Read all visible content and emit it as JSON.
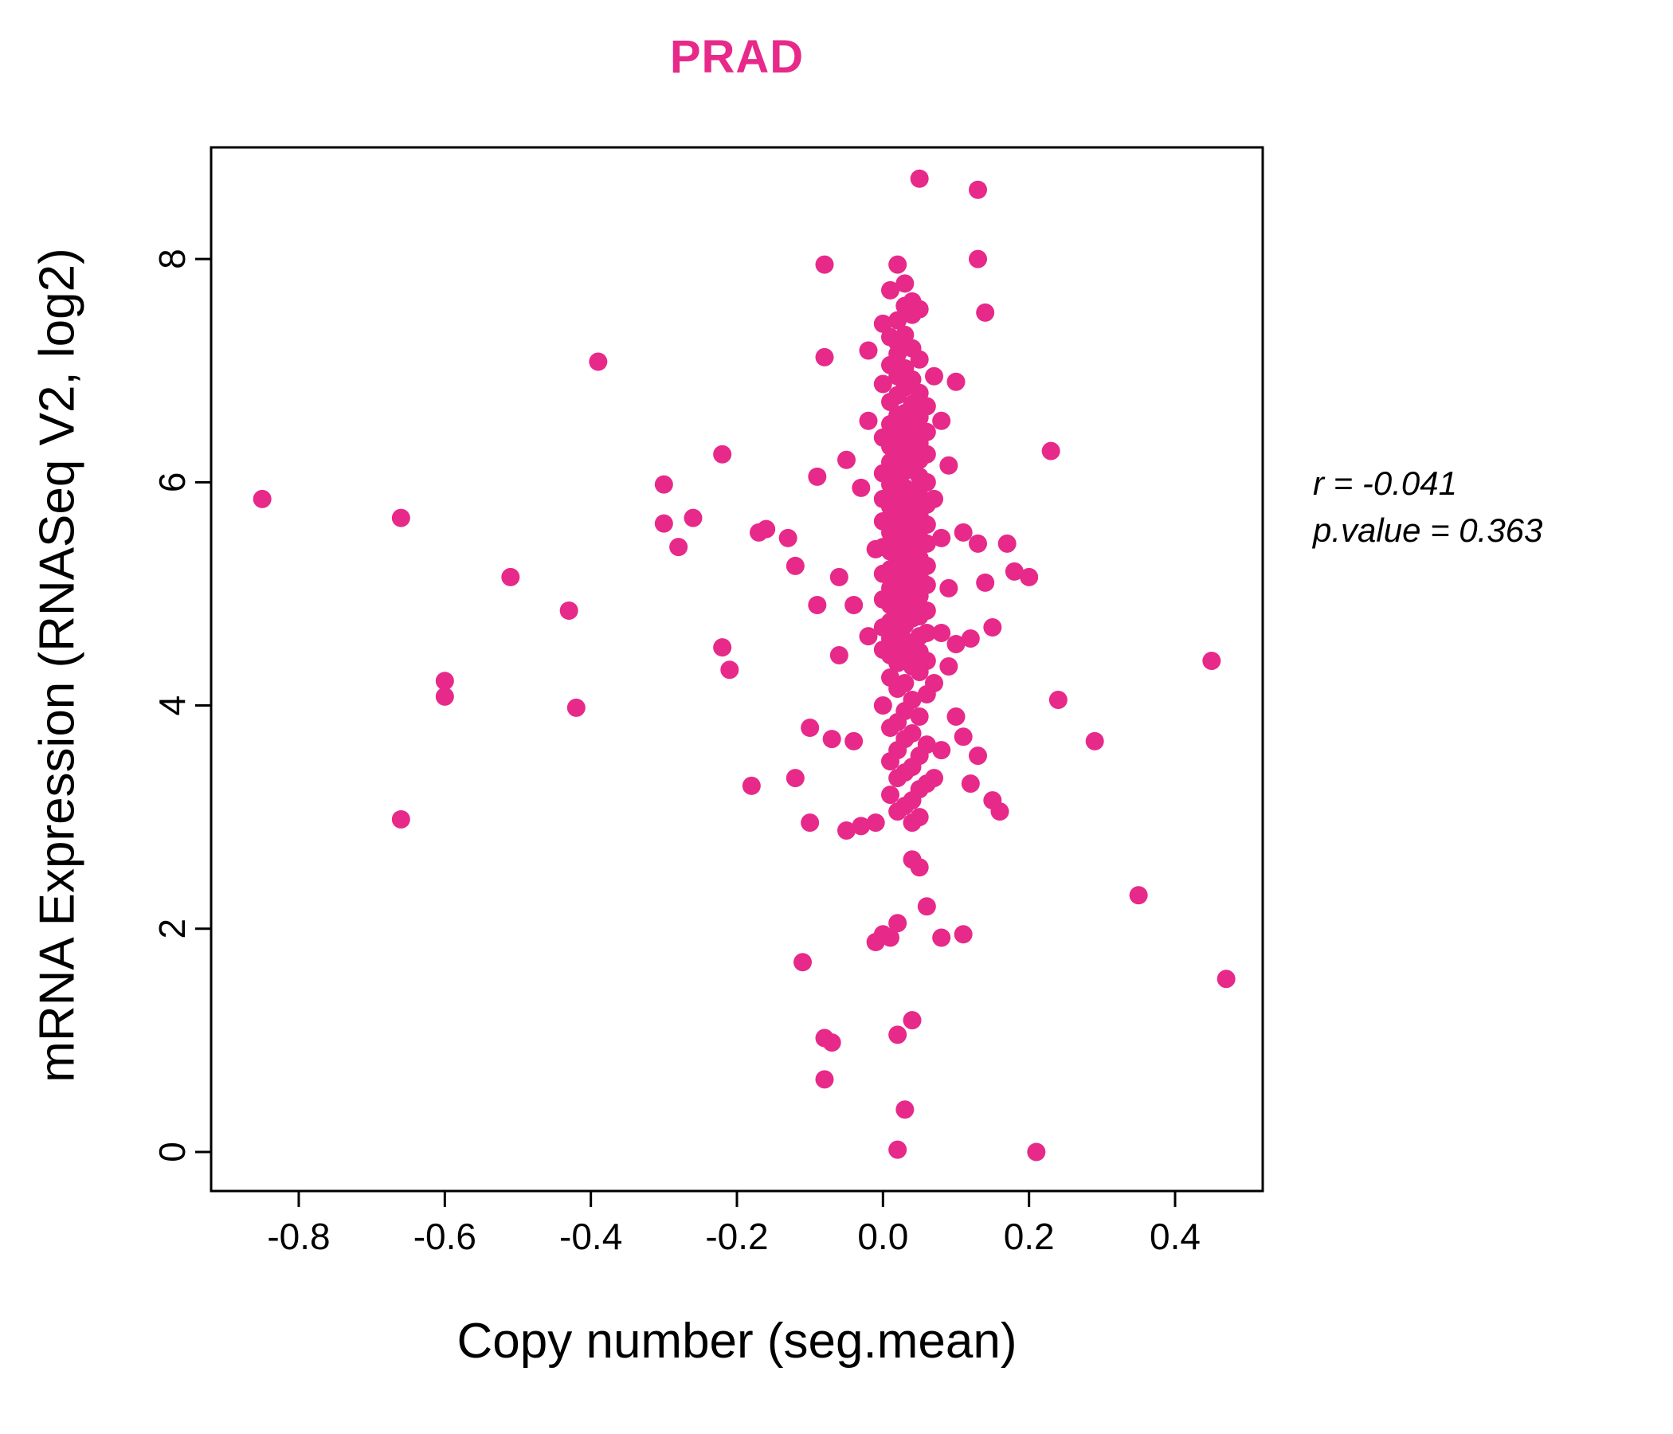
{
  "colors": {
    "accent": "#E7298A"
  },
  "chart_data": {
    "type": "scatter",
    "title": "PRAD",
    "xlabel": "Copy number (seg.mean)",
    "ylabel": "mRNA Expression (RNASeq V2, log2)",
    "xlim": [
      -0.92,
      0.52
    ],
    "ylim": [
      -0.35,
      9.0
    ],
    "x_ticks": [
      -0.8,
      -0.6,
      -0.4,
      -0.2,
      0.0,
      0.2,
      0.4
    ],
    "y_ticks": [
      0,
      2,
      4,
      6,
      8
    ],
    "grid": false,
    "legend": null,
    "point_color": "#E7298A",
    "annotations": [
      "r = -0.041",
      "p.value = 0.363"
    ],
    "points": [
      [
        -0.85,
        5.85
      ],
      [
        -0.66,
        5.68
      ],
      [
        -0.66,
        2.98
      ],
      [
        -0.6,
        4.22
      ],
      [
        -0.6,
        4.08
      ],
      [
        -0.51,
        5.15
      ],
      [
        -0.43,
        4.85
      ],
      [
        -0.42,
        3.98
      ],
      [
        -0.39,
        7.08
      ],
      [
        -0.3,
        5.98
      ],
      [
        -0.3,
        5.63
      ],
      [
        -0.28,
        5.42
      ],
      [
        -0.26,
        5.68
      ],
      [
        -0.22,
        6.25
      ],
      [
        -0.22,
        4.52
      ],
      [
        -0.21,
        4.32
      ],
      [
        -0.18,
        3.28
      ],
      [
        -0.17,
        5.55
      ],
      [
        -0.16,
        5.58
      ],
      [
        -0.13,
        5.5
      ],
      [
        -0.12,
        5.25
      ],
      [
        -0.12,
        3.35
      ],
      [
        -0.11,
        1.7
      ],
      [
        -0.1,
        2.95
      ],
      [
        -0.1,
        3.8
      ],
      [
        -0.09,
        4.9
      ],
      [
        -0.09,
        6.05
      ],
      [
        -0.08,
        7.95
      ],
      [
        -0.08,
        7.12
      ],
      [
        -0.08,
        1.02
      ],
      [
        -0.08,
        0.65
      ],
      [
        -0.07,
        0.98
      ],
      [
        -0.07,
        3.7
      ],
      [
        -0.06,
        4.45
      ],
      [
        -0.06,
        5.15
      ],
      [
        -0.05,
        6.2
      ],
      [
        -0.05,
        2.88
      ],
      [
        -0.04,
        4.9
      ],
      [
        -0.04,
        3.68
      ],
      [
        -0.03,
        5.95
      ],
      [
        -0.03,
        2.92
      ],
      [
        -0.02,
        7.18
      ],
      [
        -0.02,
        6.55
      ],
      [
        -0.02,
        4.62
      ],
      [
        -0.01,
        5.4
      ],
      [
        -0.01,
        2.95
      ],
      [
        -0.01,
        1.88
      ],
      [
        0.02,
        0.02
      ],
      [
        0.21,
        0.0
      ],
      [
        0.03,
        0.38
      ],
      [
        0.04,
        1.18
      ],
      [
        0.02,
        1.05
      ],
      [
        0.0,
        1.95
      ],
      [
        0.01,
        1.92
      ],
      [
        0.02,
        2.05
      ],
      [
        0.05,
        2.55
      ],
      [
        0.06,
        2.2
      ],
      [
        0.08,
        1.92
      ],
      [
        0.11,
        1.95
      ],
      [
        0.04,
        2.62
      ],
      [
        0.05,
        8.72
      ],
      [
        0.13,
        8.62
      ],
      [
        0.13,
        8.0
      ],
      [
        0.02,
        7.95
      ],
      [
        0.14,
        7.52
      ],
      [
        0.03,
        7.78
      ],
      [
        0.01,
        7.72
      ],
      [
        0.04,
        7.62
      ],
      [
        0.0,
        7.42
      ],
      [
        0.02,
        7.45
      ],
      [
        0.04,
        7.5
      ],
      [
        0.03,
        7.58
      ],
      [
        0.05,
        7.55
      ],
      [
        0.1,
        6.9
      ],
      [
        0.11,
        5.55
      ],
      [
        0.12,
        3.3
      ],
      [
        0.13,
        5.45
      ],
      [
        0.14,
        5.1
      ],
      [
        0.15,
        3.15
      ],
      [
        0.15,
        4.7
      ],
      [
        0.16,
        3.05
      ],
      [
        0.17,
        5.45
      ],
      [
        0.18,
        5.2
      ],
      [
        0.2,
        5.15
      ],
      [
        0.23,
        6.28
      ],
      [
        0.24,
        4.05
      ],
      [
        0.29,
        3.68
      ],
      [
        0.35,
        2.3
      ],
      [
        0.45,
        4.4
      ],
      [
        0.47,
        1.55
      ],
      [
        0.12,
        4.6
      ],
      [
        0.13,
        3.55
      ],
      [
        0.11,
        3.72
      ],
      [
        0.01,
        7.3
      ],
      [
        0.02,
        7.25
      ],
      [
        0.03,
        7.32
      ],
      [
        0.02,
        7.15
      ],
      [
        0.04,
        7.2
      ],
      [
        0.01,
        7.05
      ],
      [
        0.03,
        7.02
      ],
      [
        0.05,
        7.1
      ],
      [
        0.02,
        6.95
      ],
      [
        0.04,
        6.92
      ],
      [
        0.0,
        6.88
      ],
      [
        0.03,
        6.85
      ],
      [
        0.05,
        6.8
      ],
      [
        0.02,
        6.78
      ],
      [
        0.01,
        6.72
      ],
      [
        0.04,
        6.7
      ],
      [
        0.06,
        6.68
      ],
      [
        0.03,
        6.62
      ],
      [
        0.02,
        6.6
      ],
      [
        0.05,
        6.58
      ],
      [
        0.01,
        6.52
      ],
      [
        0.03,
        6.5
      ],
      [
        0.04,
        6.48
      ],
      [
        0.06,
        6.45
      ],
      [
        0.02,
        6.42
      ],
      [
        0.0,
        6.4
      ],
      [
        0.03,
        6.38
      ],
      [
        0.05,
        6.35
      ],
      [
        0.01,
        6.32
      ],
      [
        0.04,
        6.3
      ],
      [
        0.02,
        6.28
      ],
      [
        0.06,
        6.25
      ],
      [
        0.03,
        6.22
      ],
      [
        0.05,
        6.2
      ],
      [
        0.01,
        6.18
      ],
      [
        0.02,
        6.15
      ],
      [
        0.04,
        6.12
      ],
      [
        0.03,
        6.1
      ],
      [
        0.0,
        6.08
      ],
      [
        0.05,
        6.05
      ],
      [
        0.02,
        6.02
      ],
      [
        0.06,
        6.0
      ],
      [
        0.01,
        5.98
      ],
      [
        0.03,
        5.95
      ],
      [
        0.04,
        5.92
      ],
      [
        0.02,
        5.9
      ],
      [
        0.05,
        5.88
      ],
      [
        0.0,
        5.85
      ],
      [
        0.03,
        5.82
      ],
      [
        0.06,
        5.8
      ],
      [
        0.01,
        5.78
      ],
      [
        0.04,
        5.75
      ],
      [
        0.02,
        5.72
      ],
      [
        0.05,
        5.7
      ],
      [
        0.03,
        5.68
      ],
      [
        0.0,
        5.65
      ],
      [
        0.06,
        5.62
      ],
      [
        0.02,
        5.6
      ],
      [
        0.04,
        5.58
      ],
      [
        0.01,
        5.55
      ],
      [
        0.03,
        5.52
      ],
      [
        0.05,
        5.5
      ],
      [
        0.02,
        5.48
      ],
      [
        0.06,
        5.45
      ],
      [
        0.0,
        5.42
      ],
      [
        0.04,
        5.4
      ],
      [
        0.01,
        5.38
      ],
      [
        0.03,
        5.35
      ],
      [
        0.05,
        5.32
      ],
      [
        0.02,
        5.3
      ],
      [
        0.04,
        5.28
      ],
      [
        0.06,
        5.25
      ],
      [
        0.01,
        5.22
      ],
      [
        0.03,
        5.2
      ],
      [
        0.0,
        5.18
      ],
      [
        0.05,
        5.15
      ],
      [
        0.02,
        5.12
      ],
      [
        0.04,
        5.1
      ],
      [
        0.06,
        5.08
      ],
      [
        0.01,
        5.05
      ],
      [
        0.03,
        5.02
      ],
      [
        0.02,
        5.0
      ],
      [
        0.05,
        4.98
      ],
      [
        0.0,
        4.95
      ],
      [
        0.04,
        4.92
      ],
      [
        0.01,
        4.9
      ],
      [
        0.03,
        4.88
      ],
      [
        0.06,
        4.85
      ],
      [
        0.02,
        4.82
      ],
      [
        0.05,
        4.8
      ],
      [
        0.04,
        4.78
      ],
      [
        0.01,
        4.75
      ],
      [
        0.03,
        4.72
      ],
      [
        0.0,
        4.7
      ],
      [
        0.02,
        4.68
      ],
      [
        0.06,
        4.65
      ],
      [
        0.05,
        4.62
      ],
      [
        0.01,
        4.6
      ],
      [
        0.03,
        4.58
      ],
      [
        0.04,
        4.55
      ],
      [
        0.02,
        4.52
      ],
      [
        0.0,
        4.5
      ],
      [
        0.05,
        4.48
      ],
      [
        0.01,
        4.45
      ],
      [
        0.03,
        4.42
      ],
      [
        0.06,
        4.4
      ],
      [
        0.02,
        4.38
      ],
      [
        0.04,
        4.35
      ],
      [
        0.05,
        4.3
      ],
      [
        0.01,
        4.25
      ],
      [
        0.03,
        4.2
      ],
      [
        0.02,
        4.15
      ],
      [
        0.06,
        4.1
      ],
      [
        0.04,
        4.05
      ],
      [
        0.0,
        4.0
      ],
      [
        0.03,
        3.95
      ],
      [
        0.05,
        3.9
      ],
      [
        0.02,
        3.85
      ],
      [
        0.01,
        3.8
      ],
      [
        0.04,
        3.75
      ],
      [
        0.03,
        3.7
      ],
      [
        0.06,
        3.65
      ],
      [
        0.02,
        3.6
      ],
      [
        0.05,
        3.55
      ],
      [
        0.01,
        3.5
      ],
      [
        0.04,
        3.45
      ],
      [
        0.03,
        3.4
      ],
      [
        0.02,
        3.35
      ],
      [
        0.06,
        3.3
      ],
      [
        0.05,
        3.25
      ],
      [
        0.01,
        3.2
      ],
      [
        0.04,
        3.15
      ],
      [
        0.03,
        3.1
      ],
      [
        0.02,
        3.05
      ],
      [
        0.05,
        3.0
      ],
      [
        0.04,
        2.95
      ],
      [
        0.07,
        3.35
      ],
      [
        0.08,
        3.6
      ],
      [
        0.07,
        4.2
      ],
      [
        0.08,
        4.65
      ],
      [
        0.09,
        5.05
      ],
      [
        0.08,
        5.5
      ],
      [
        0.07,
        5.85
      ],
      [
        0.09,
        6.15
      ],
      [
        0.08,
        6.55
      ],
      [
        0.07,
        6.95
      ],
      [
        0.09,
        4.35
      ],
      [
        0.1,
        3.9
      ],
      [
        0.1,
        4.55
      ]
    ]
  }
}
